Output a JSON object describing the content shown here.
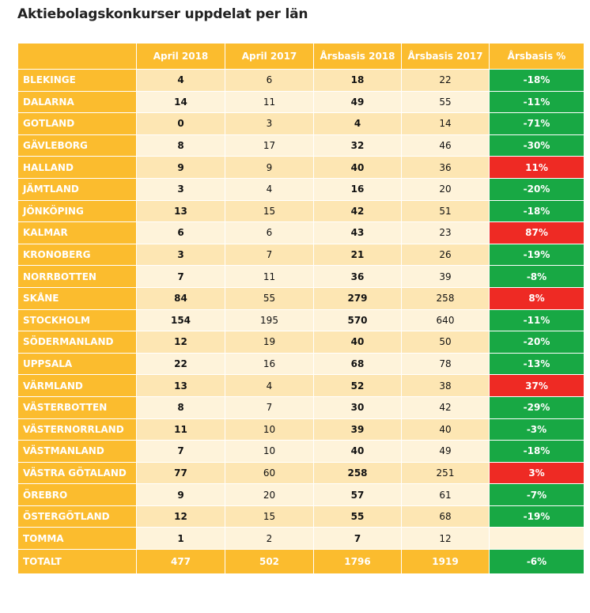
{
  "chart_data": {
    "type": "table",
    "title": "Aktiebolagskonkurser uppdelat per län",
    "columns": [
      "",
      "April 2018",
      "April 2017",
      "Årsbasis 2018",
      "Årsbasis 2017",
      "Årsbasis %"
    ],
    "colors": {
      "header": "#fbbc2e",
      "decrease": "#18a844",
      "increase": "#ee2a24",
      "row_odd": "#fde6b3",
      "row_even": "#fef3da"
    },
    "rows": [
      {
        "region": "BLEKINGE",
        "april_2018": "4",
        "april_2017": "6",
        "arsbasis_2018": "18",
        "arsbasis_2017": "22",
        "arsbasis_pct": "-18%",
        "trend": "down"
      },
      {
        "region": "DALARNA",
        "april_2018": "14",
        "april_2017": "11",
        "arsbasis_2018": "49",
        "arsbasis_2017": "55",
        "arsbasis_pct": "-11%",
        "trend": "down"
      },
      {
        "region": "GOTLAND",
        "april_2018": "0",
        "april_2017": "3",
        "arsbasis_2018": "4",
        "arsbasis_2017": "14",
        "arsbasis_pct": "-71%",
        "trend": "down"
      },
      {
        "region": "GÄVLEBORG",
        "april_2018": "8",
        "april_2017": "17",
        "arsbasis_2018": "32",
        "arsbasis_2017": "46",
        "arsbasis_pct": "-30%",
        "trend": "down"
      },
      {
        "region": "HALLAND",
        "april_2018": "9",
        "april_2017": "9",
        "arsbasis_2018": "40",
        "arsbasis_2017": "36",
        "arsbasis_pct": "11%",
        "trend": "up"
      },
      {
        "region": "JÄMTLAND",
        "april_2018": "3",
        "april_2017": "4",
        "arsbasis_2018": "16",
        "arsbasis_2017": "20",
        "arsbasis_pct": "-20%",
        "trend": "down"
      },
      {
        "region": "JÖNKÖPING",
        "april_2018": "13",
        "april_2017": "15",
        "arsbasis_2018": "42",
        "arsbasis_2017": "51",
        "arsbasis_pct": "-18%",
        "trend": "down"
      },
      {
        "region": "KALMAR",
        "april_2018": "6",
        "april_2017": "6",
        "arsbasis_2018": "43",
        "arsbasis_2017": "23",
        "arsbasis_pct": "87%",
        "trend": "up"
      },
      {
        "region": "KRONOBERG",
        "april_2018": "3",
        "april_2017": "7",
        "arsbasis_2018": "21",
        "arsbasis_2017": "26",
        "arsbasis_pct": "-19%",
        "trend": "down"
      },
      {
        "region": "NORRBOTTEN",
        "april_2018": "7",
        "april_2017": "11",
        "arsbasis_2018": "36",
        "arsbasis_2017": "39",
        "arsbasis_pct": "-8%",
        "trend": "down"
      },
      {
        "region": "SKÅNE",
        "april_2018": "84",
        "april_2017": "55",
        "arsbasis_2018": "279",
        "arsbasis_2017": "258",
        "arsbasis_pct": "8%",
        "trend": "up"
      },
      {
        "region": "STOCKHOLM",
        "april_2018": "154",
        "april_2017": "195",
        "arsbasis_2018": "570",
        "arsbasis_2017": "640",
        "arsbasis_pct": "-11%",
        "trend": "down"
      },
      {
        "region": "SÖDERMANLAND",
        "april_2018": "12",
        "april_2017": "19",
        "arsbasis_2018": "40",
        "arsbasis_2017": "50",
        "arsbasis_pct": "-20%",
        "trend": "down"
      },
      {
        "region": "UPPSALA",
        "april_2018": "22",
        "april_2017": "16",
        "arsbasis_2018": "68",
        "arsbasis_2017": "78",
        "arsbasis_pct": "-13%",
        "trend": "down"
      },
      {
        "region": "VÄRMLAND",
        "april_2018": "13",
        "april_2017": "4",
        "arsbasis_2018": "52",
        "arsbasis_2017": "38",
        "arsbasis_pct": "37%",
        "trend": "up"
      },
      {
        "region": "VÄSTERBOTTEN",
        "april_2018": "8",
        "april_2017": "7",
        "arsbasis_2018": "30",
        "arsbasis_2017": "42",
        "arsbasis_pct": "-29%",
        "trend": "down"
      },
      {
        "region": "VÄSTERNORRLAND",
        "april_2018": "11",
        "april_2017": "10",
        "arsbasis_2018": "39",
        "arsbasis_2017": "40",
        "arsbasis_pct": "-3%",
        "trend": "down"
      },
      {
        "region": "VÄSTMANLAND",
        "april_2018": "7",
        "april_2017": "10",
        "arsbasis_2018": "40",
        "arsbasis_2017": "49",
        "arsbasis_pct": "-18%",
        "trend": "down"
      },
      {
        "region": "VÄSTRA GÖTALAND",
        "april_2018": "77",
        "april_2017": "60",
        "arsbasis_2018": "258",
        "arsbasis_2017": "251",
        "arsbasis_pct": "3%",
        "trend": "up"
      },
      {
        "region": "ÖREBRO",
        "april_2018": "9",
        "april_2017": "20",
        "arsbasis_2018": "57",
        "arsbasis_2017": "61",
        "arsbasis_pct": "-7%",
        "trend": "down"
      },
      {
        "region": "ÖSTERGÖTLAND",
        "april_2018": "12",
        "april_2017": "15",
        "arsbasis_2018": "55",
        "arsbasis_2017": "68",
        "arsbasis_pct": "-19%",
        "trend": "down"
      },
      {
        "region": "TOMMA",
        "april_2018": "1",
        "april_2017": "2",
        "arsbasis_2018": "7",
        "arsbasis_2017": "12",
        "arsbasis_pct": "",
        "trend": "none"
      }
    ],
    "total": {
      "region": "TOTALT",
      "april_2018": "477",
      "april_2017": "502",
      "arsbasis_2018": "1796",
      "arsbasis_2017": "1919",
      "arsbasis_pct": "-6%",
      "trend": "down"
    }
  }
}
